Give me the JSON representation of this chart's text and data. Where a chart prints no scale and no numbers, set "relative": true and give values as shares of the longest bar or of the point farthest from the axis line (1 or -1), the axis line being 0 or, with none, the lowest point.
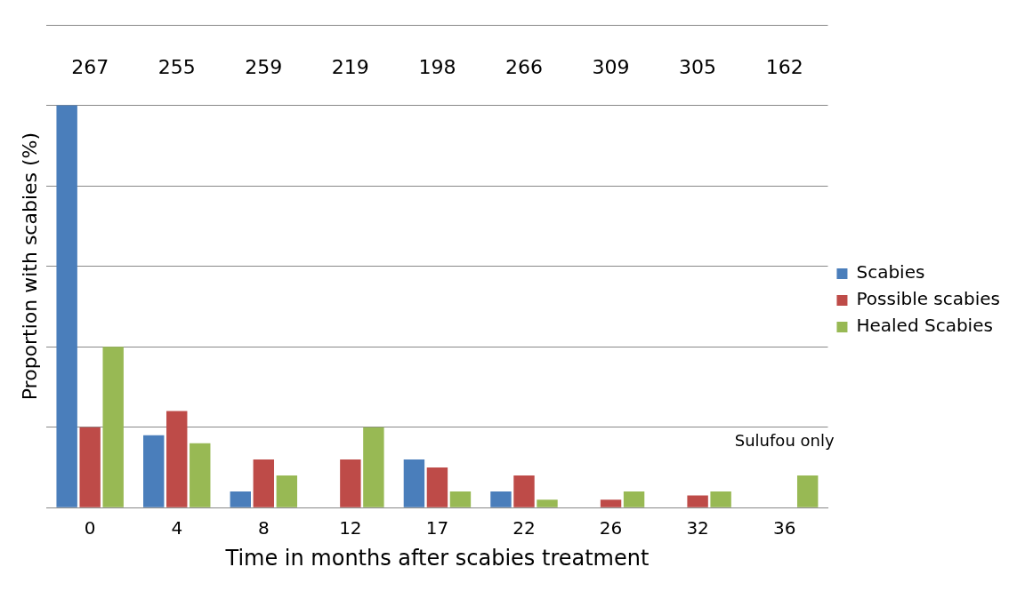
{
  "chart_data": {
    "type": "bar",
    "relative": true,
    "xlabel": "Time in months after scabies treatment",
    "ylabel": "Proportion with scabies (%)",
    "categories": [
      "0",
      "4",
      "8",
      "12",
      "17",
      "22",
      "26",
      "32",
      "36"
    ],
    "series": [
      {
        "name": "Scabies",
        "color": "#4a7ebb",
        "values": [
          1,
          0.18,
          0.04,
          0,
          0.12,
          0.04,
          0,
          0,
          0
        ]
      },
      {
        "name": "Possible scabies",
        "color": "#be4b48",
        "values": [
          0.2,
          0.24,
          0.12,
          0.12,
          0.1,
          0.08,
          0.02,
          0.03,
          0
        ]
      },
      {
        "name": "Healed Scabies",
        "color": "#98b954",
        "values": [
          0.4,
          0.16,
          0.08,
          0.2,
          0.04,
          0.02,
          0.04,
          0.04,
          0.08
        ]
      }
    ],
    "annotations": [
      "267",
      "255",
      "259",
      "219",
      "198",
      "266",
      "309",
      "305",
      "162",
      "Sulufou only"
    ],
    "grid": "y",
    "legend": "right"
  }
}
